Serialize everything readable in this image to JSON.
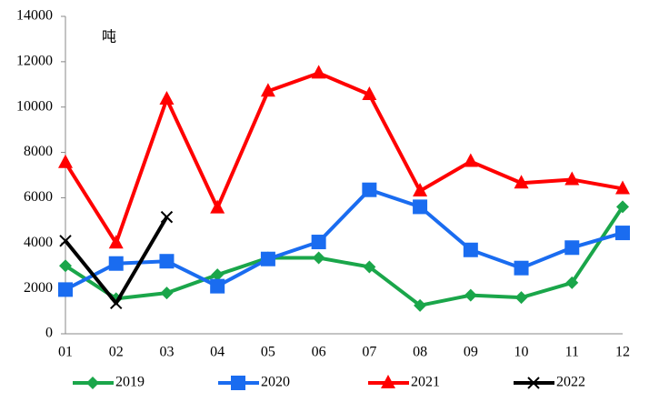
{
  "chart_data": {
    "type": "line",
    "annotation": "吨",
    "categories": [
      "01",
      "02",
      "03",
      "04",
      "05",
      "06",
      "07",
      "08",
      "09",
      "10",
      "11",
      "12"
    ],
    "series": [
      {
        "name": "2019",
        "color": "#1aa64a",
        "marker": "diamond",
        "values": [
          3000,
          1550,
          1800,
          2600,
          3350,
          3350,
          2950,
          1250,
          1700,
          1600,
          2250,
          5600
        ]
      },
      {
        "name": "2020",
        "color": "#1a6cf0",
        "marker": "square",
        "values": [
          1950,
          3100,
          3200,
          2100,
          3300,
          4050,
          6350,
          5600,
          3700,
          2900,
          3800,
          4450
        ]
      },
      {
        "name": "2021",
        "color": "#ff0000",
        "marker": "triangle",
        "values": [
          7550,
          4000,
          10350,
          5550,
          10700,
          11500,
          10550,
          6300,
          7600,
          6650,
          6800,
          6400
        ]
      },
      {
        "name": "2022",
        "color": "#000000",
        "marker": "x",
        "values": [
          4100,
          1350,
          5150,
          null,
          null,
          null,
          null,
          null,
          null,
          null,
          null,
          null
        ]
      }
    ],
    "ylim": [
      0,
      14000
    ],
    "yticks": [
      0,
      2000,
      4000,
      6000,
      8000,
      10000,
      12000,
      14000
    ],
    "grid": false
  }
}
